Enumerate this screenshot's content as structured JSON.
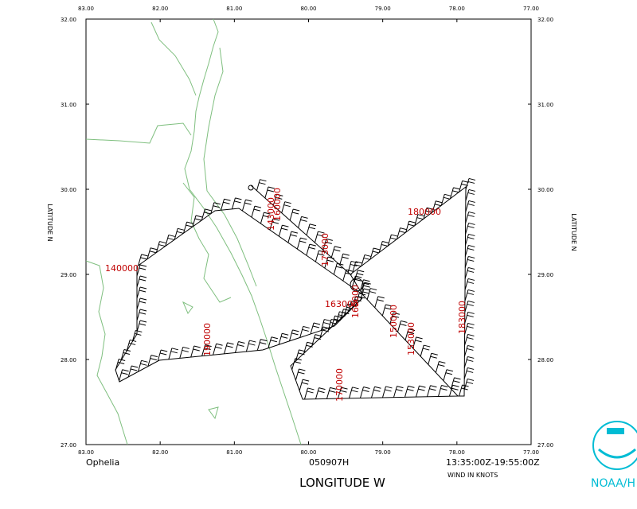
{
  "map": {
    "x_ticks": [
      "83.00",
      "82.00",
      "81.00",
      "80.00",
      "79.00",
      "78.00",
      "77.00"
    ],
    "y_ticks": [
      "32.00",
      "31.00",
      "30.00",
      "29.00",
      "28.00",
      "27.00"
    ],
    "x_axis_label": "LONGITUDE  W",
    "y_axis_label": "LATITUDE  N",
    "storm": "Ophelia",
    "date": "050907H",
    "time_range": "13:35:00Z-19:55:00Z",
    "units_note": "WIND IN KNOTS",
    "time_labels": [
      "140000",
      "143000",
      "160000",
      "180000",
      "173000",
      "163000",
      "165000",
      "150000",
      "153000",
      "183000",
      "170000",
      "190000"
    ],
    "logo_text": "NOAA/H"
  }
}
